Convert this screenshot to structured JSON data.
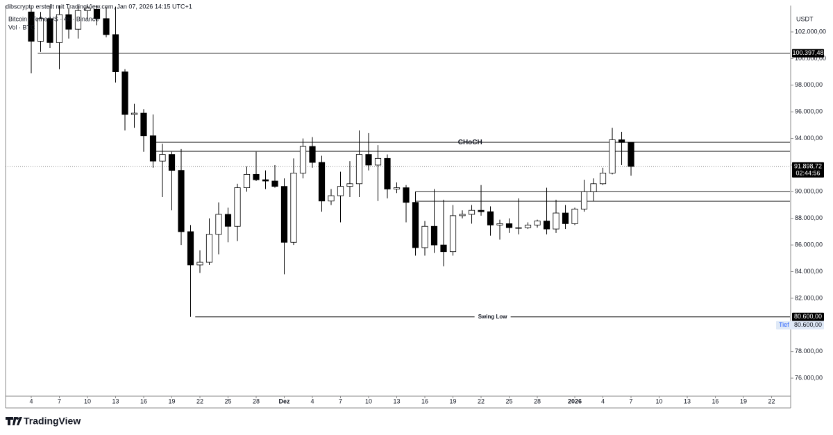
{
  "chart_data": {
    "type": "candlestick",
    "credit": "dibscrypto erstellt mit TradingView.com, Jan 07, 2026 14:15 UTC+1",
    "title": "Bitcoin / TetherUS · 4h · Binance",
    "subtitle": "Vol · BTC",
    "y_unit": "USDT",
    "brand": "TradingView",
    "up_color": "#ffffff",
    "down_color": "#000000",
    "wick_color": "#000000",
    "x": [
      0,
      1,
      2,
      3,
      4,
      5,
      6,
      7,
      8,
      9,
      10,
      11,
      12,
      13,
      14,
      15,
      16,
      17,
      18,
      19,
      20,
      21,
      22,
      23,
      24,
      25,
      26,
      27,
      28,
      29,
      30,
      31,
      32,
      33,
      34,
      35,
      36,
      37,
      38,
      39,
      40,
      41,
      42,
      43,
      44,
      45,
      46,
      47,
      48,
      49,
      50,
      51,
      52,
      53,
      54,
      55,
      56,
      57,
      58,
      59,
      60,
      61,
      62,
      63,
      64
    ],
    "open": [
      103500,
      101300,
      103000,
      101200,
      103300,
      102200,
      103600,
      103700,
      103000,
      101800,
      99000,
      95800,
      95900,
      94200,
      92300,
      92800,
      91600,
      87000,
      84500,
      84700,
      86800,
      88300,
      87400,
      90300,
      91300,
      90900,
      90800,
      90400,
      86200,
      91400,
      93400,
      92200,
      89300,
      89700,
      90400,
      90600,
      92800,
      92000,
      92500,
      90200,
      90300,
      89200,
      85800,
      87400,
      86000,
      85500,
      88200,
      88300,
      88600,
      88500,
      87500,
      87600,
      87300,
      87300,
      87500,
      87800,
      87200,
      88400,
      87600,
      88700,
      90000,
      90600,
      91400,
      93900,
      93700
    ],
    "high": [
      104000,
      103500,
      104000,
      104000,
      103800,
      104000,
      104000,
      103980,
      103900,
      103900,
      99200,
      96600,
      96200,
      95800,
      93600,
      93000,
      93200,
      87500,
      85600,
      88000,
      89200,
      88800,
      90600,
      91900,
      93000,
      91600,
      92000,
      91000,
      92500,
      94000,
      94100,
      92700,
      90200,
      91500,
      92300,
      94600,
      94400,
      93500,
      92800,
      90700,
      90500,
      90000,
      87800,
      90200,
      89400,
      89000,
      88600,
      89000,
      90500,
      88900,
      87900,
      88000,
      89500,
      87700,
      87900,
      90300,
      89400,
      89000,
      88800,
      90900,
      91000,
      91800,
      94800,
      94500,
      93700
    ],
    "low": [
      98900,
      100500,
      100800,
      99200,
      101500,
      101500,
      103000,
      102500,
      101600,
      98200,
      94600,
      94800,
      93000,
      91800,
      89600,
      88600,
      86000,
      80600,
      83900,
      84500,
      85300,
      86200,
      86300,
      90000,
      90800,
      90200,
      90300,
      83800,
      86000,
      91000,
      91800,
      88500,
      89000,
      87700,
      89600,
      89600,
      91600,
      89300,
      89500,
      89900,
      87700,
      85200,
      85200,
      85400,
      84400,
      85200,
      88000,
      87600,
      88200,
      86700,
      86400,
      86900,
      86800,
      87200,
      87300,
      86800,
      86900,
      87200,
      87500,
      88500,
      89300,
      90500,
      91300,
      92000,
      91200
    ],
    "close": [
      101300,
      103000,
      101200,
      103300,
      102200,
      103600,
      103800,
      103000,
      101800,
      99000,
      95800,
      95900,
      94200,
      92300,
      92800,
      91600,
      87000,
      84500,
      84700,
      86800,
      88300,
      87400,
      90300,
      91300,
      90900,
      90800,
      90400,
      86200,
      91400,
      93400,
      92200,
      89300,
      89700,
      90400,
      90600,
      92800,
      92000,
      92500,
      90200,
      90300,
      89200,
      85800,
      87400,
      86000,
      85500,
      88200,
      88300,
      88600,
      88500,
      87500,
      87600,
      87300,
      87300,
      87500,
      87800,
      87200,
      88400,
      87600,
      88700,
      90000,
      90600,
      91400,
      93900,
      93700,
      91898.72
    ],
    "xlim": [
      -2.74,
      80.96
    ],
    "xticks": [
      {
        "value": 0,
        "label": "4"
      },
      {
        "value": 3,
        "label": "7"
      },
      {
        "value": 6,
        "label": "10"
      },
      {
        "value": 9,
        "label": "13"
      },
      {
        "value": 12,
        "label": "16"
      },
      {
        "value": 15,
        "label": "19"
      },
      {
        "value": 18,
        "label": "22"
      },
      {
        "value": 21,
        "label": "25"
      },
      {
        "value": 24,
        "label": "28"
      },
      {
        "value": 27,
        "label": "Dez"
      },
      {
        "value": 30,
        "label": "4"
      },
      {
        "value": 33,
        "label": "7"
      },
      {
        "value": 36,
        "label": "10"
      },
      {
        "value": 39,
        "label": "13"
      },
      {
        "value": 42,
        "label": "16"
      },
      {
        "value": 45,
        "label": "19"
      },
      {
        "value": 48,
        "label": "22"
      },
      {
        "value": 51,
        "label": "25"
      },
      {
        "value": 54,
        "label": "28"
      },
      {
        "value": 58,
        "label": "2026"
      },
      {
        "value": 61,
        "label": "4"
      },
      {
        "value": 64,
        "label": "7"
      },
      {
        "value": 67,
        "label": "10"
      },
      {
        "value": 70,
        "label": "13"
      },
      {
        "value": 73,
        "label": "16"
      },
      {
        "value": 76,
        "label": "19"
      },
      {
        "value": 79,
        "label": "22"
      }
    ],
    "ylim": [
      74700,
      103980
    ],
    "yticks": [
      {
        "value": 76000,
        "label": "76.000,00"
      },
      {
        "value": 78000,
        "label": "78.000,00"
      },
      {
        "value": 80000,
        "label": "80.000,00"
      },
      {
        "value": 82000,
        "label": "82.000,00"
      },
      {
        "value": 84000,
        "label": "84.000,00"
      },
      {
        "value": 86000,
        "label": "86.000,00"
      },
      {
        "value": 88000,
        "label": "88.000,00"
      },
      {
        "value": 90000,
        "label": "90.000,00"
      },
      {
        "value": 92000,
        "label": "92.000,00"
      },
      {
        "value": 94000,
        "label": "94.000,00"
      },
      {
        "value": 96000,
        "label": "96.000,00"
      },
      {
        "value": 98000,
        "label": "98.000,00"
      },
      {
        "value": 100000,
        "label": "100.000,00"
      },
      {
        "value": 102000,
        "label": "102.000,00"
      }
    ],
    "levels": [
      {
        "value": 100397.48,
        "label": "100.397,48",
        "x_start": 0.7
      },
      {
        "value": 80600,
        "label": "80.600,00",
        "name": "Swing Low",
        "x_start": 17.5
      }
    ],
    "zones": [
      {
        "name": "CHoCH",
        "low": 93036,
        "high": 93714,
        "x_start": 12.7
      },
      {
        "low": 89286,
        "high": 90000,
        "x_start": 41
      }
    ],
    "last": {
      "value": 91898.72,
      "label": "91.898,72",
      "countdown": "02:44:56"
    },
    "low_marker": {
      "name": "Tief",
      "value": 80600,
      "label": "80.600,00"
    }
  }
}
